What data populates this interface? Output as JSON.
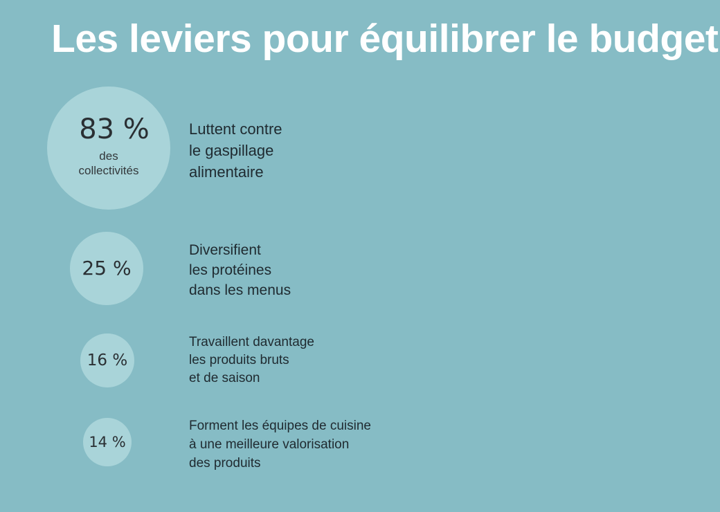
{
  "title": "Les leviers pour équilibrer le budget",
  "colors": {
    "background": "#86bcc5",
    "bubble": "#a9d4d9",
    "title": "#ffffff",
    "text": "#1f2a30"
  },
  "chart_data": {
    "type": "bubble",
    "title": "Les leviers pour équilibrer le budget",
    "unit": "%",
    "items": [
      {
        "value": 83,
        "value_label": "83 %",
        "sublabel": [
          "des",
          "collectivités"
        ],
        "lines": [
          "Luttent contre",
          "le gaspillage",
          "alimentaire"
        ]
      },
      {
        "value": 25,
        "value_label": "25 %",
        "sublabel": [],
        "lines": [
          "Diversifient",
          "les protéines",
          "dans les menus"
        ]
      },
      {
        "value": 16,
        "value_label": "16 %",
        "sublabel": [],
        "lines": [
          "Travaillent davantage",
          "les produits bruts",
          "et de saison"
        ]
      },
      {
        "value": 14,
        "value_label": "14 %",
        "sublabel": [],
        "lines": [
          "Forment les équipes de cuisine",
          "à une meilleure valorisation",
          "des produits"
        ]
      }
    ]
  }
}
